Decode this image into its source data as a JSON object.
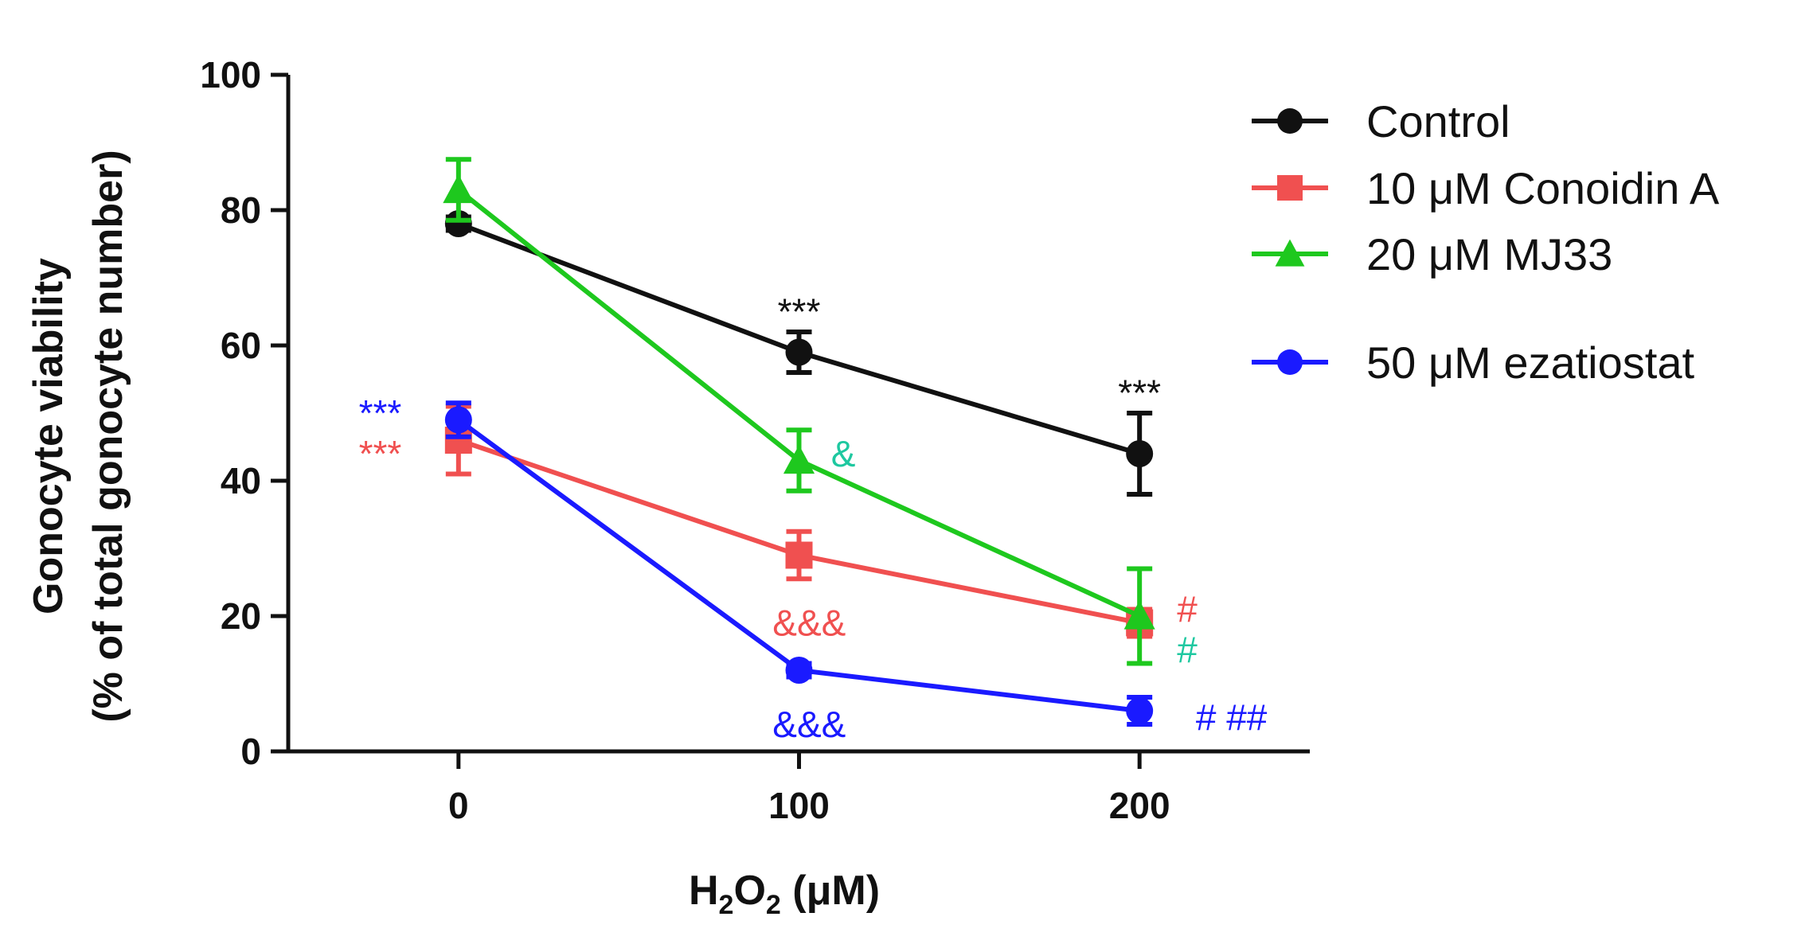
{
  "chart_data": {
    "type": "line",
    "ylabel_line1": "Gonocyte viability",
    "ylabel_line2": "(% of total gonocyte number)",
    "xlabel": {
      "prefix": "H",
      "sub1": "2",
      "mid": "O",
      "sub2": "2",
      "suffix": " (μM)"
    },
    "x": [
      0,
      100,
      200
    ],
    "x_ticks": [
      "0",
      "100",
      "200"
    ],
    "xlim": [
      -50,
      250
    ],
    "ylim": [
      0,
      100
    ],
    "y_ticks": [
      "0",
      "20",
      "40",
      "60",
      "80",
      "100"
    ],
    "series": [
      {
        "name": "Control",
        "color": "#111111",
        "marker": "circle",
        "values": [
          78,
          59,
          44
        ],
        "errors": [
          1,
          3,
          6
        ]
      },
      {
        "name": "10 μM Conoidin A",
        "color": "#f05050",
        "marker": "square",
        "values": [
          46,
          29,
          19
        ],
        "errors": [
          5,
          3.5,
          2
        ]
      },
      {
        "name": "20 μM MJ33",
        "color": "#1ec81e",
        "marker": "triangle",
        "values": [
          83,
          43,
          20
        ],
        "errors": [
          4.5,
          4.5,
          7
        ]
      },
      {
        "name": "50 μM ezatiostat",
        "color": "#1a1aff",
        "marker": "circle",
        "values": [
          49,
          12,
          6
        ],
        "errors": [
          2.5,
          1,
          2
        ]
      }
    ],
    "annotations": [
      {
        "text": "***",
        "color": "#111111",
        "x": 100,
        "y": 65
      },
      {
        "text": "***",
        "color": "#111111",
        "x": 200,
        "y": 53
      },
      {
        "text": "***",
        "color": "#1a1aff",
        "x": -23,
        "y": 50
      },
      {
        "text": "***",
        "color": "#f05050",
        "x": -23,
        "y": 44
      },
      {
        "text": "&",
        "color": "#1ec8a0",
        "x": 113,
        "y": 44
      },
      {
        "text": "&&&",
        "color": "#f05050",
        "x": 103,
        "y": 19
      },
      {
        "text": "&&&",
        "color": "#1a1aff",
        "x": 103,
        "y": 4
      },
      {
        "text": "#",
        "color": "#f05050",
        "x": 214,
        "y": 21
      },
      {
        "text": "#",
        "color": "#1ec8a0",
        "x": 214,
        "y": 15
      },
      {
        "text": "# ##",
        "color": "#1a1aff",
        "x": 227,
        "y": 5
      }
    ]
  }
}
